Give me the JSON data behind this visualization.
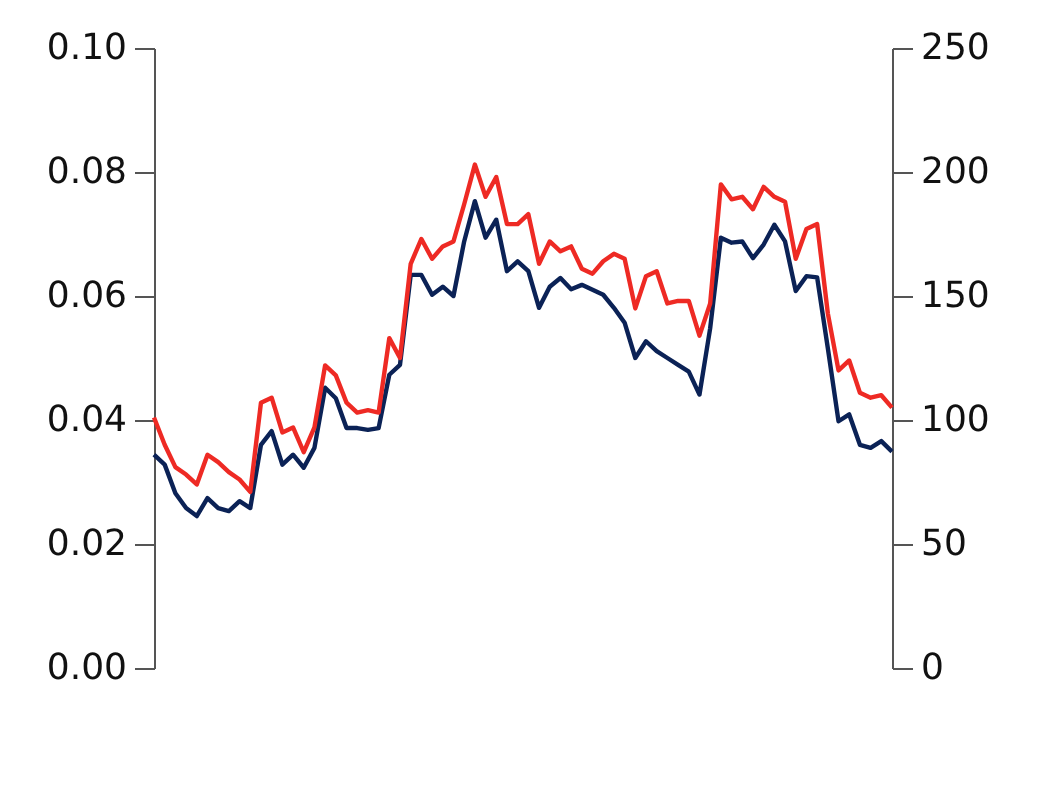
{
  "chart_data": {
    "type": "line",
    "categories": [
      null,
      null,
      null,
      null,
      null,
      null,
      null,
      null,
      null,
      null,
      null,
      null,
      null,
      null,
      null,
      null,
      null,
      null,
      null,
      null,
      null,
      null,
      null,
      null,
      null,
      null,
      null,
      null,
      null,
      null,
      null,
      null,
      null,
      null,
      null,
      null,
      null,
      null,
      null,
      null,
      null,
      null,
      null,
      null,
      null,
      null,
      null,
      null,
      null,
      null,
      null,
      null,
      null,
      null,
      null,
      null,
      null,
      null,
      null,
      null,
      null,
      null,
      null,
      null,
      null,
      null,
      null,
      null,
      null,
      null
    ],
    "series": [
      {
        "color": "#0b2256",
        "axis": "y",
        "values": [
          0.0344,
          0.0328,
          0.0282,
          0.0258,
          0.0245,
          0.0274,
          0.0258,
          0.0253,
          0.0269,
          0.0258,
          0.036,
          0.0382,
          0.0328,
          0.0344,
          0.0323,
          0.0355,
          0.0452,
          0.0435,
          0.0387,
          0.0387,
          0.0384,
          0.0387,
          0.0473,
          0.0489,
          0.0634,
          0.0634,
          0.0602,
          0.0615,
          0.06,
          0.0688,
          0.0753,
          0.0694,
          0.0723,
          0.064,
          0.0656,
          0.064,
          0.0581,
          0.0615,
          0.0629,
          0.0611,
          0.0618,
          0.061,
          0.0602,
          0.0581,
          0.0557,
          0.05,
          0.0527,
          0.0511,
          0.05,
          0.0489,
          0.0478,
          0.0441,
          0.0548,
          0.0694,
          0.0686,
          0.0688,
          0.0661,
          0.0683,
          0.0715,
          0.0688,
          0.0608,
          0.0632,
          0.063,
          0.0516,
          0.0398,
          0.0409,
          0.036,
          0.0355,
          0.0366,
          0.0349
        ]
      },
      {
        "color": "#ee2a24",
        "axis": "y2",
        "values": [
          101,
          90,
          81,
          78,
          74,
          86,
          83,
          79,
          76,
          71,
          107,
          109,
          95,
          97,
          87,
          97,
          122,
          118,
          107,
          103,
          104,
          103,
          133,
          125,
          163,
          173,
          165,
          170,
          172,
          187,
          203,
          190,
          198,
          179,
          179,
          183,
          163,
          172,
          168,
          170,
          161,
          159,
          164,
          167,
          165,
          145,
          158,
          160,
          147,
          148,
          148,
          134,
          147,
          195,
          189,
          190,
          185,
          194,
          190,
          188,
          165,
          177,
          179,
          143,
          120,
          124,
          111,
          109,
          110,
          105
        ]
      }
    ],
    "ylim": [
      0,
      0.1
    ],
    "yticks": [
      {
        "value": 0,
        "label": "0.00"
      },
      {
        "value": 0.02,
        "label": "0.02"
      },
      {
        "value": 0.04,
        "label": "0.04"
      },
      {
        "value": 0.06,
        "label": "0.06"
      },
      {
        "value": 0.08,
        "label": "0.08"
      },
      {
        "value": 0.1,
        "label": "0.10"
      }
    ],
    "y2lim": [
      0,
      250
    ],
    "y2ticks": [
      0,
      50,
      100,
      150,
      200,
      250
    ],
    "grid": false,
    "line_style": "solid",
    "marker": "none"
  }
}
